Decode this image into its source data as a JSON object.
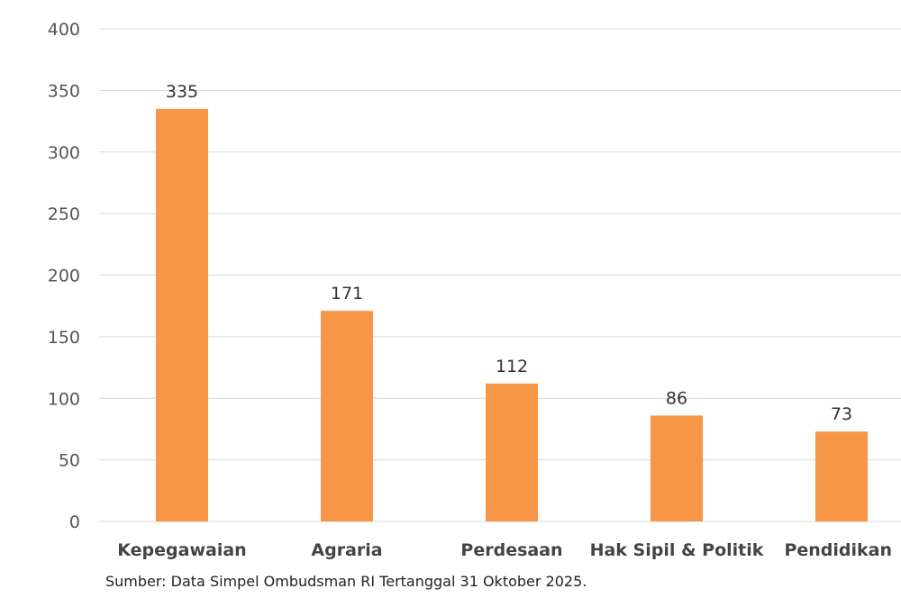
{
  "chart_data": {
    "type": "bar",
    "categories": [
      "Kepegawaian",
      "Agraria",
      "Perdesaan",
      "Hak Sipil & Politik",
      "Pendidikan"
    ],
    "values": [
      335,
      171,
      112,
      86,
      73
    ],
    "data_labels": [
      "335",
      "171",
      "112",
      "86",
      "73"
    ],
    "title": "",
    "xlabel": "",
    "ylabel": "",
    "ylim": [
      0,
      400
    ],
    "y_ticks": [
      0,
      50,
      100,
      150,
      200,
      250,
      300,
      350,
      400
    ],
    "grid": true,
    "legend": "none",
    "bar_color": "#F79646"
  },
  "source_note": "Sumber: Data Simpel Ombudsman RI Tertanggal 31 Oktober 2025."
}
